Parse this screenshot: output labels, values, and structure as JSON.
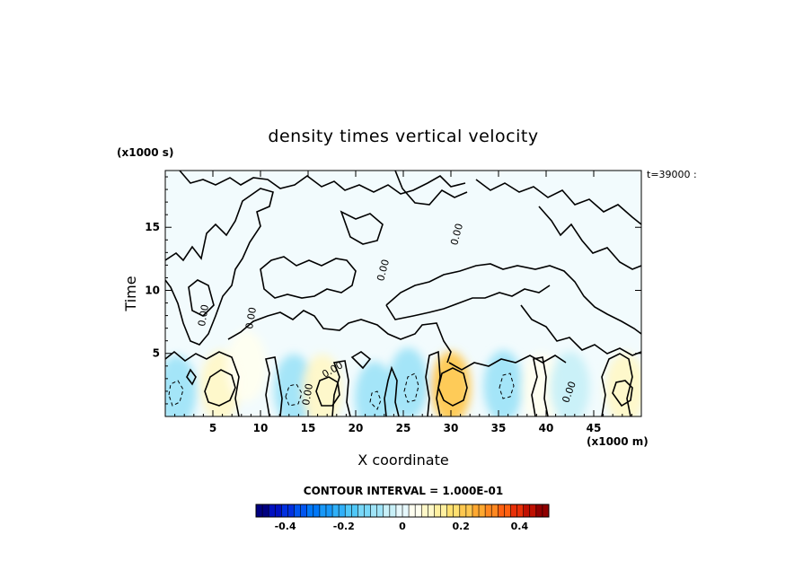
{
  "chart_data": {
    "type": "heatmap",
    "title": "density times vertical velocity",
    "xlabel": "X coordinate",
    "ylabel": "Time",
    "x_units": "(x1000 m)",
    "y_units": "(x1000 s)",
    "xlim": [
      0,
      50
    ],
    "ylim": [
      0,
      19.5
    ],
    "x_ticks": [
      5,
      10,
      15,
      20,
      25,
      30,
      35,
      40,
      45
    ],
    "y_ticks": [
      5,
      10,
      15
    ],
    "x_tick_labels": [
      "5",
      "10",
      "15",
      "20",
      "25",
      "30",
      "35",
      "40",
      "45"
    ],
    "y_tick_labels": [
      "5",
      "10",
      "15"
    ],
    "time_stamp": "t=39000 :",
    "contour_interval_text": "CONTOUR INTERVAL = 1.000E-01",
    "contour_labels": [
      "0.00",
      "0.00",
      "0.00",
      "0.00",
      "0.00",
      "0.00",
      "0.00"
    ],
    "colorbar": {
      "range": [
        -0.5,
        0.5
      ],
      "tick_values": [
        -0.4,
        -0.2,
        0,
        0.2,
        0.4
      ],
      "tick_labels": [
        "-0.4",
        "-0.2",
        "0",
        "0.2",
        "0.4"
      ],
      "colors": [
        "#000080",
        "#0010c0",
        "#0030e0",
        "#0055f0",
        "#0078f8",
        "#1898f8",
        "#30b0f8",
        "#50c8f8",
        "#78d8f8",
        "#a0e4f8",
        "#c8f0f8",
        "#e6f8fc",
        "#fffff0",
        "#fff8c8",
        "#fff0a0",
        "#ffe070",
        "#ffc850",
        "#ffa830",
        "#ff8820",
        "#ff6010",
        "#e83008",
        "#c01000",
        "#900000"
      ]
    },
    "features": [
      {
        "x": 1.2,
        "y": 2.0,
        "value": -0.1
      },
      {
        "x": 5.8,
        "y": 2.4,
        "value": 0.1
      },
      {
        "x": 8.5,
        "y": 4.0,
        "value": 0.05
      },
      {
        "x": 13.5,
        "y": 2.1,
        "value": -0.1
      },
      {
        "x": 16.5,
        "y": 2.1,
        "value": 0.1
      },
      {
        "x": 22.0,
        "y": 1.5,
        "value": -0.1
      },
      {
        "x": 25.5,
        "y": 2.6,
        "value": -0.1
      },
      {
        "x": 30.0,
        "y": 2.3,
        "value": 0.2
      },
      {
        "x": 35.5,
        "y": 2.4,
        "value": -0.1
      },
      {
        "x": 39.5,
        "y": 2.2,
        "value": 0.05
      },
      {
        "x": 42.5,
        "y": 2.3,
        "value": -0.05
      },
      {
        "x": 48.3,
        "y": 2.2,
        "value": 0.1
      }
    ]
  }
}
